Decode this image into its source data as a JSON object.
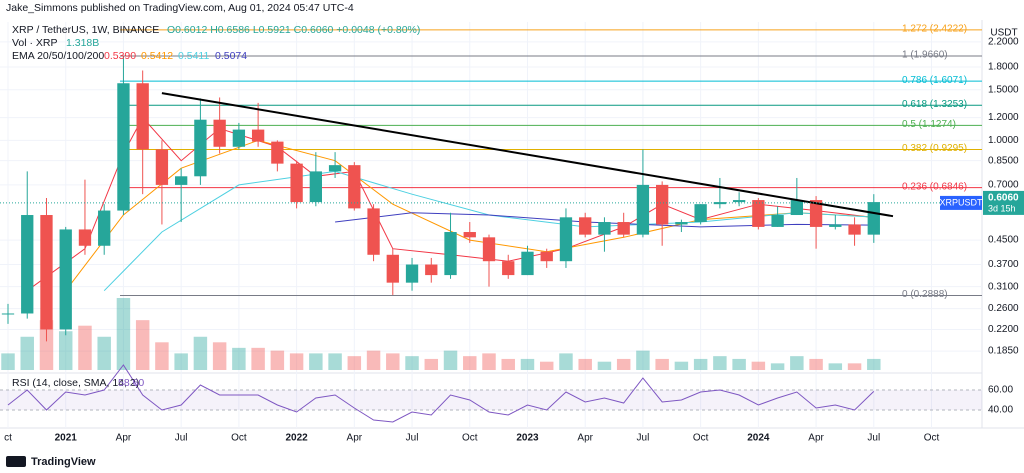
{
  "header": {
    "publisher": "Jake_Simmons published on TradingView.com, Aug 01, 2024 05:47 UTC-4",
    "brand": "TradingView"
  },
  "chart_data": {
    "type": "candlestick",
    "title": "XRP / TetherUS, 1W, BINANCE",
    "ohlc_text": "O0.6012 H0.6586 L0.5921 C0.6060 +0.0048 (+0.80%)",
    "volume_label": "Vol · XRP",
    "volume_last": "1.318B",
    "ema_label": "EMA 20/50/100/200",
    "currency": "USDT",
    "symbol_tag": {
      "symbol": "XRPUSDT",
      "price": 0.606,
      "price_label": "0.6060",
      "countdown": "3d 15h"
    },
    "log_scale": true,
    "up_color": "#26a69a",
    "down_color": "#ef5350",
    "categories": [
      "2020-10",
      "2020-11",
      "2020-12",
      "2021-01",
      "2021-02",
      "2021-03",
      "2021-04",
      "2021-05",
      "2021-06",
      "2021-07",
      "2021-08",
      "2021-09",
      "2021-10",
      "2021-11",
      "2021-12",
      "2022-01",
      "2022-02",
      "2022-03",
      "2022-04",
      "2022-05",
      "2022-06",
      "2022-07",
      "2022-08",
      "2022-09",
      "2022-10",
      "2022-11",
      "2022-12",
      "2023-01",
      "2023-02",
      "2023-03",
      "2023-04",
      "2023-05",
      "2023-06",
      "2023-07",
      "2023-08",
      "2023-09",
      "2023-10",
      "2023-11",
      "2023-12",
      "2024-01",
      "2024-02",
      "2024-03",
      "2024-04",
      "2024-05",
      "2024-06",
      "2024-07"
    ],
    "open": [
      0.25,
      0.25,
      0.55,
      0.22,
      0.49,
      0.43,
      0.57,
      1.58,
      0.93,
      0.7,
      0.75,
      1.18,
      0.95,
      1.09,
      0.99,
      0.83,
      0.61,
      0.78,
      0.82,
      0.58,
      0.4,
      0.32,
      0.37,
      0.34,
      0.48,
      0.46,
      0.38,
      0.34,
      0.41,
      0.38,
      0.54,
      0.47,
      0.52,
      0.47,
      0.7,
      0.51,
      0.52,
      0.6,
      0.61,
      0.62,
      0.5,
      0.55,
      0.62,
      0.5,
      0.51,
      0.47
    ],
    "high": [
      0.27,
      0.78,
      0.63,
      0.5,
      0.73,
      0.6,
      1.96,
      1.75,
      1.0,
      0.8,
      1.4,
      1.41,
      1.15,
      1.35,
      1.0,
      0.85,
      0.91,
      0.91,
      0.84,
      0.6,
      0.42,
      0.39,
      0.39,
      0.56,
      0.52,
      0.47,
      0.4,
      0.43,
      0.42,
      0.58,
      0.56,
      0.54,
      0.56,
      0.93,
      0.72,
      0.53,
      0.6,
      0.74,
      0.66,
      0.63,
      0.59,
      0.74,
      0.64,
      0.55,
      0.54,
      0.65
    ],
    "low": [
      0.23,
      0.24,
      0.2,
      0.21,
      0.4,
      0.4,
      0.55,
      0.65,
      0.51,
      0.52,
      0.7,
      0.9,
      0.93,
      0.95,
      0.78,
      0.58,
      0.59,
      0.74,
      0.57,
      0.38,
      0.29,
      0.3,
      0.32,
      0.33,
      0.44,
      0.31,
      0.33,
      0.34,
      0.36,
      0.36,
      0.46,
      0.41,
      0.46,
      0.46,
      0.43,
      0.48,
      0.51,
      0.58,
      0.59,
      0.49,
      0.5,
      0.55,
      0.42,
      0.49,
      0.43,
      0.44
    ],
    "close": [
      0.25,
      0.55,
      0.22,
      0.49,
      0.43,
      0.57,
      1.58,
      0.93,
      0.7,
      0.75,
      1.18,
      0.95,
      1.09,
      0.99,
      0.83,
      0.61,
      0.78,
      0.82,
      0.58,
      0.4,
      0.32,
      0.37,
      0.34,
      0.48,
      0.46,
      0.38,
      0.34,
      0.41,
      0.38,
      0.54,
      0.47,
      0.52,
      0.47,
      0.7,
      0.51,
      0.52,
      0.6,
      0.61,
      0.62,
      0.5,
      0.55,
      0.62,
      0.5,
      0.51,
      0.47,
      0.61
    ],
    "volume": [
      0.3,
      0.6,
      0.9,
      0.7,
      0.8,
      0.6,
      1.3,
      0.9,
      0.5,
      0.3,
      0.6,
      0.5,
      0.4,
      0.4,
      0.35,
      0.3,
      0.3,
      0.3,
      0.25,
      0.35,
      0.3,
      0.25,
      0.2,
      0.35,
      0.25,
      0.3,
      0.2,
      0.2,
      0.15,
      0.3,
      0.2,
      0.15,
      0.2,
      0.35,
      0.2,
      0.15,
      0.2,
      0.25,
      0.2,
      0.15,
      0.12,
      0.25,
      0.2,
      0.12,
      0.12,
      0.2
    ],
    "ylim": [
      0.159,
      2.58
    ],
    "yticks": [
      {
        "value": 2.2,
        "label": "2.2000"
      },
      {
        "value": 1.8,
        "label": "1.8000"
      },
      {
        "value": 1.5,
        "label": "1.5000"
      },
      {
        "value": 1.2,
        "label": "1.2000"
      },
      {
        "value": 1,
        "label": "1.0000"
      },
      {
        "value": 0.85,
        "label": "0.8500"
      },
      {
        "value": 0.7,
        "label": "0.7000"
      },
      {
        "value": 0.45,
        "label": "0.4500"
      },
      {
        "value": 0.37,
        "label": "0.3700"
      },
      {
        "value": 0.31,
        "label": "0.3100"
      },
      {
        "value": 0.26,
        "label": "0.2600"
      },
      {
        "value": 0.22,
        "label": "0.2200"
      },
      {
        "value": 0.185,
        "label": "0.1850"
      }
    ],
    "xlim": [
      "2020-10",
      "2024-12"
    ],
    "xticks": [
      {
        "value": "2020-10",
        "label": "ct"
      },
      {
        "value": "2021-01",
        "label": "2021"
      },
      {
        "value": "2021-04",
        "label": "Apr"
      },
      {
        "value": "2021-07",
        "label": "Jul"
      },
      {
        "value": "2021-10",
        "label": "Oct"
      },
      {
        "value": "2022-01",
        "label": "2022"
      },
      {
        "value": "2022-04",
        "label": "Apr"
      },
      {
        "value": "2022-07",
        "label": "Jul"
      },
      {
        "value": "2022-10",
        "label": "Oct"
      },
      {
        "value": "2023-01",
        "label": "2023"
      },
      {
        "value": "2023-04",
        "label": "Apr"
      },
      {
        "value": "2023-07",
        "label": "Jul"
      },
      {
        "value": "2023-10",
        "label": "Oct"
      },
      {
        "value": "2024-01",
        "label": "2024"
      },
      {
        "value": "2024-04",
        "label": "Apr"
      },
      {
        "value": "2024-07",
        "label": "Jul"
      },
      {
        "value": "2024-10",
        "label": "Oct"
      }
    ],
    "fib": [
      {
        "value": 2.4222,
        "label": "1.272 (2.4222)",
        "color": "#f7a21b"
      },
      {
        "value": 1.966,
        "label": "1 (1.9660)",
        "color": "#787b86"
      },
      {
        "value": 1.6071,
        "label": "0.786 (1.6071)",
        "color": "#00bcd4"
      },
      {
        "value": 1.3253,
        "label": "0.618 (1.3253)",
        "color": "#089981"
      },
      {
        "value": 1.1274,
        "label": "0.5 (1.1274)",
        "color": "#4caf50"
      },
      {
        "value": 0.9295,
        "label": "0.382 (0.9295)",
        "color": "#e0b000"
      },
      {
        "value": 0.6846,
        "label": "0.236 (0.6846)",
        "color": "#f23645"
      },
      {
        "value": 0.2888,
        "label": "0 (0.2888)",
        "color": "#787b86"
      }
    ],
    "trendline": {
      "x": [
        "2021-06",
        "2024-08"
      ],
      "y": [
        1.46,
        0.545
      ],
      "color": "#000000"
    },
    "ema": [
      {
        "name": "20",
        "legend_value": "0.5390",
        "color": "#f23645",
        "x": [
          "2020-11",
          "2021-02",
          "2021-04",
          "2021-05",
          "2021-07",
          "2021-09",
          "2021-12",
          "2022-02",
          "2022-04",
          "2022-06",
          "2022-09",
          "2022-12",
          "2023-03",
          "2023-06",
          "2023-08",
          "2023-10",
          "2024-01",
          "2024-04",
          "2024-07"
        ],
        "values": [
          0.3,
          0.42,
          0.9,
          1.2,
          0.85,
          1.1,
          0.95,
          0.75,
          0.78,
          0.42,
          0.4,
          0.38,
          0.42,
          0.5,
          0.6,
          0.53,
          0.6,
          0.57,
          0.539
        ]
      },
      {
        "name": "50",
        "legend_value": "0.5412",
        "color": "#ff9800",
        "x": [
          "2021-01",
          "2021-04",
          "2021-07",
          "2021-11",
          "2022-03",
          "2022-06",
          "2022-10",
          "2023-02",
          "2023-06",
          "2023-10",
          "2024-03",
          "2024-07"
        ],
        "values": [
          0.3,
          0.55,
          0.8,
          1.0,
          0.85,
          0.6,
          0.45,
          0.41,
          0.46,
          0.53,
          0.56,
          0.5412
        ]
      },
      {
        "name": "100",
        "legend_value": "0.5411",
        "color": "#4dd0e1",
        "x": [
          "2021-03",
          "2021-06",
          "2021-10",
          "2022-03",
          "2022-07",
          "2022-11",
          "2023-04",
          "2023-10",
          "2024-03",
          "2024-07"
        ],
        "values": [
          0.3,
          0.48,
          0.7,
          0.78,
          0.65,
          0.55,
          0.5,
          0.52,
          0.56,
          0.5411
        ]
      },
      {
        "name": "200",
        "legend_value": "0.5074",
        "color": "#3f3fbf",
        "x": [
          "2022-03",
          "2022-07",
          "2022-11",
          "2023-04",
          "2023-10",
          "2024-03",
          "2024-07"
        ],
        "values": [
          0.52,
          0.56,
          0.55,
          0.52,
          0.5,
          0.51,
          0.5074
        ]
      }
    ],
    "rsi": {
      "label": "RSI (14, close, SMA, 14, 2)",
      "last": "58.60",
      "color": "#7e57c2",
      "values": [
        45,
        60,
        40,
        58,
        55,
        60,
        85,
        55,
        40,
        45,
        65,
        55,
        55,
        55,
        45,
        38,
        52,
        55,
        42,
        30,
        28,
        38,
        35,
        55,
        50,
        38,
        35,
        45,
        40,
        58,
        48,
        52,
        47,
        72,
        48,
        50,
        58,
        60,
        55,
        45,
        52,
        58,
        42,
        45,
        40,
        58.6
      ],
      "ylim": [
        26,
        72
      ],
      "yticks": [
        {
          "value": 60,
          "label": "60.00"
        },
        {
          "value": 40,
          "label": "40.00"
        }
      ]
    }
  }
}
